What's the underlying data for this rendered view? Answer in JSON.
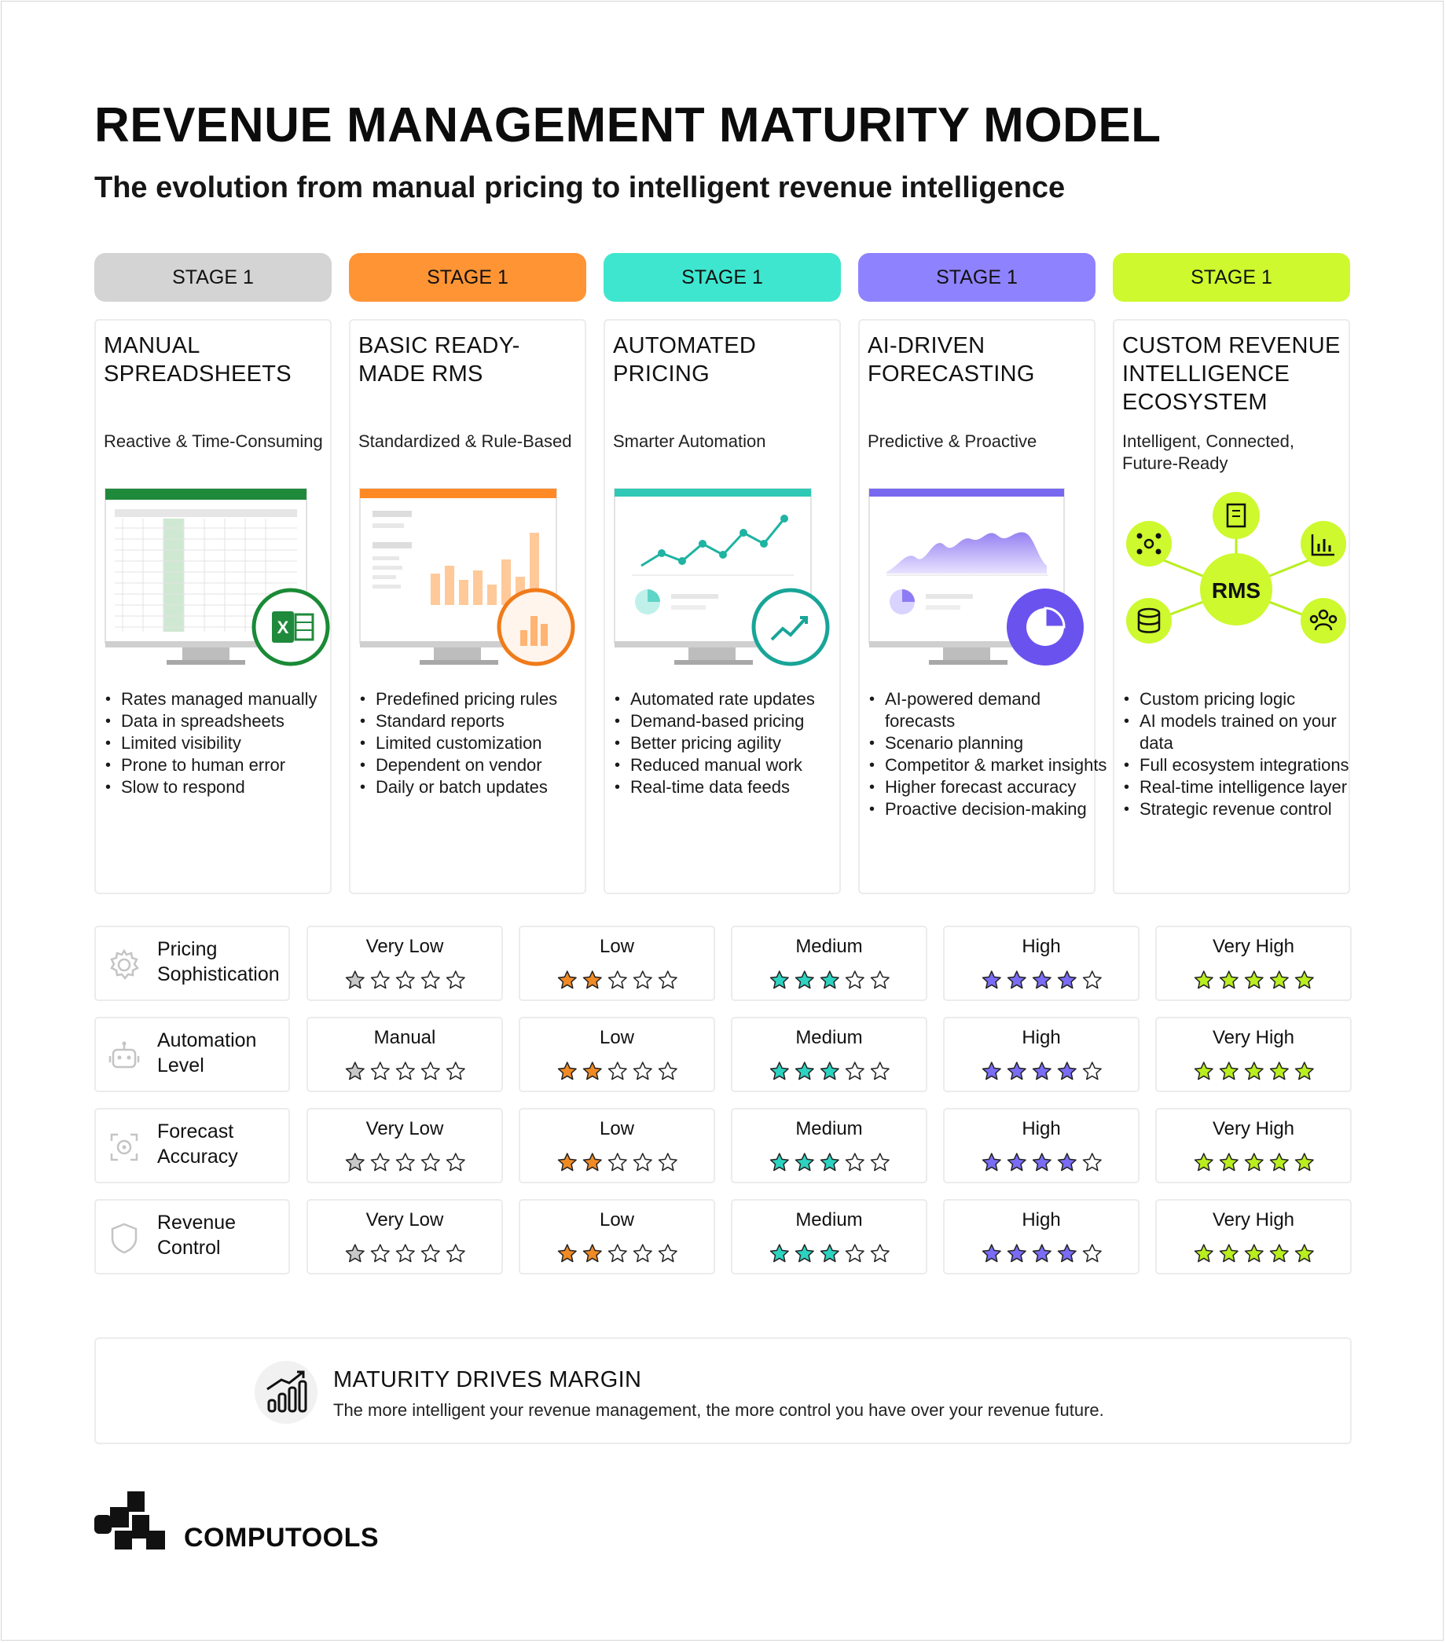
{
  "header": {
    "title": "REVENUE MANAGEMENT MATURITY MODEL",
    "subtitle": "The evolution from manual pricing to intelligent revenue intelligence"
  },
  "colors": {
    "stage_1": "#d4d4d4",
    "stage_2": "#ff9435",
    "stage_3": "#3ee6cf",
    "stage_4": "#8f82ff",
    "stage_5": "#cdf92e",
    "star_1": "#c8c8c8",
    "star_2": "#f08a24",
    "star_3": "#2cd3c0",
    "star_4": "#7a6cf5",
    "star_5": "#b9ee1f"
  },
  "stages": [
    {
      "pill": "STAGE 1",
      "title": "MANUAL SPREADSHEETS",
      "tagline": "Reactive & Time-Consuming",
      "illustration": "spreadsheet-monitor-excel-icon",
      "bullets": [
        "Rates managed manually",
        "Data in spreadsheets",
        "Limited visibility",
        "Prone to human error",
        "Slow to respond"
      ]
    },
    {
      "pill": "STAGE 1",
      "title": "BASIC READY-MADE RMS",
      "tagline": "Standardized & Rule-Based",
      "illustration": "bar-chart-monitor-icon",
      "bullets": [
        "Predefined pricing rules",
        "Standard reports",
        "Limited customization",
        "Dependent on vendor",
        "Daily or batch updates"
      ]
    },
    {
      "pill": "STAGE 1",
      "title": "AUTOMATED PRICING",
      "tagline": "Smarter Automation",
      "illustration": "line-chart-monitor-trend-icon",
      "bullets": [
        "Automated rate updates",
        "Demand-based pricing",
        "Better pricing agility",
        "Reduced manual work",
        "Real-time data feeds"
      ]
    },
    {
      "pill": "STAGE 1",
      "title": "AI-DRIVEN FORECASTING",
      "tagline": "Predictive & Proactive",
      "illustration": "area-chart-monitor-pie-icon",
      "bullets": [
        "AI-powered demand forecasts",
        "Scenario planning",
        "Competitor & market insights",
        "Higher forecast accuracy",
        "Proactive decision-making"
      ]
    },
    {
      "pill": "STAGE 1",
      "title": "CUSTOM REVENUE INTELLIGENCE ECOSYSTEM",
      "tagline": "Intelligent, Connected, Future-Ready",
      "illustration": "rms-hub-network-icon",
      "hub_label": "RMS",
      "bullets": [
        "Custom pricing logic",
        "AI models trained on your data",
        "Full ecosystem integrations",
        "Real-time intelligence layer",
        "Strategic revenue control"
      ]
    }
  ],
  "ratings": [
    {
      "label": "Pricing Sophistication",
      "icon": "gear-icon",
      "cells": [
        {
          "text": "Very Low",
          "stars": 1
        },
        {
          "text": "Low",
          "stars": 2
        },
        {
          "text": "Medium",
          "stars": 3
        },
        {
          "text": "High",
          "stars": 4
        },
        {
          "text": "Very High",
          "stars": 5
        }
      ]
    },
    {
      "label": "Automation Level",
      "icon": "robot-icon",
      "cells": [
        {
          "text": "Manual",
          "stars": 1
        },
        {
          "text": "Low",
          "stars": 2
        },
        {
          "text": "Medium",
          "stars": 3
        },
        {
          "text": "High",
          "stars": 4
        },
        {
          "text": "Very High",
          "stars": 5
        }
      ]
    },
    {
      "label": "Forecast Accuracy",
      "icon": "target-icon",
      "cells": [
        {
          "text": "Very Low",
          "stars": 1
        },
        {
          "text": "Low",
          "stars": 2
        },
        {
          "text": "Medium",
          "stars": 3
        },
        {
          "text": "High",
          "stars": 4
        },
        {
          "text": "Very High",
          "stars": 5
        }
      ]
    },
    {
      "label": "Revenue Control",
      "icon": "shield-icon",
      "cells": [
        {
          "text": "Very Low",
          "stars": 1
        },
        {
          "text": "Low",
          "stars": 2
        },
        {
          "text": "Medium",
          "stars": 3
        },
        {
          "text": "High",
          "stars": 4
        },
        {
          "text": "Very High",
          "stars": 5
        }
      ]
    }
  ],
  "banner": {
    "heading": "MATURITY DRIVES MARGIN",
    "text": "The more intelligent your revenue management, the more control you have over your revenue future.",
    "icon": "growth-chart-icon"
  },
  "brand": {
    "name": "COMPUTOOLS",
    "icon": "computools-logo-icon"
  }
}
